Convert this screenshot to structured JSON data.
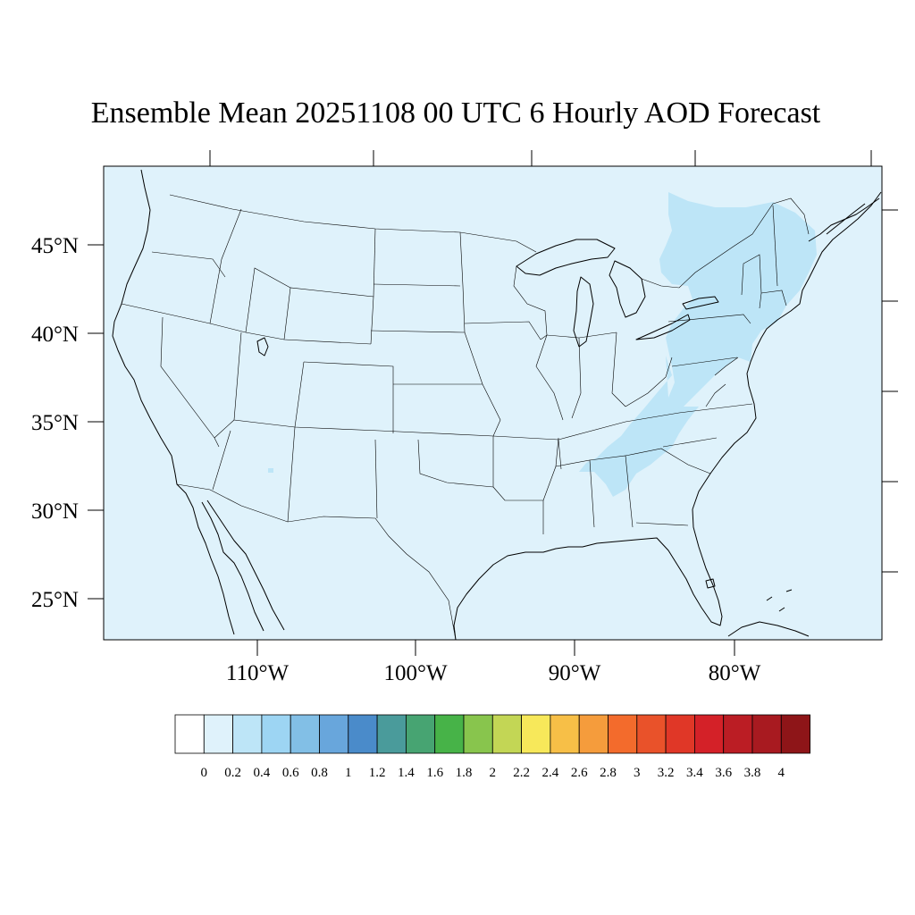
{
  "title": "Ensemble Mean 20251108 00 UTC 6 Hourly AOD Forecast",
  "map": {
    "projection": "Lambert conformal (CONUS)",
    "ocean_color": "#dff2fb",
    "lat_labels": [
      "45°N",
      "40°N",
      "35°N",
      "30°N",
      "25°N"
    ],
    "lon_labels": [
      "110°W",
      "100°W",
      "90°W",
      "80°W"
    ],
    "aod_regions": [
      {
        "name": "Northeast / Mid-Atlantic",
        "aod_bin": "0.2-0.4"
      },
      {
        "name": "Appalachian ridge to Alabama",
        "aod_bin": "0.2-0.4"
      },
      {
        "name": "Southern Arizona speck",
        "aod_bin": "0.2-0.4"
      }
    ]
  },
  "colorbar": {
    "labels": [
      "0",
      "0.2",
      "0.4",
      "0.6",
      "0.8",
      "1",
      "1.2",
      "1.4",
      "1.6",
      "1.8",
      "2",
      "2.2",
      "2.4",
      "2.6",
      "2.8",
      "3",
      "3.2",
      "3.4",
      "3.6",
      "3.8",
      "4"
    ],
    "colors": [
      "#ffffff",
      "#dff2fb",
      "#bde5f7",
      "#9dd5f3",
      "#82bfe6",
      "#68a6dc",
      "#4a8bca",
      "#4a9b9b",
      "#47a472",
      "#47b348",
      "#88c54d",
      "#c3d655",
      "#f7e85a",
      "#f7bf47",
      "#f59c3c",
      "#f36b2c",
      "#e9522a",
      "#e03727",
      "#d42128",
      "#bb1d24",
      "#a81a20",
      "#8e1518"
    ]
  }
}
